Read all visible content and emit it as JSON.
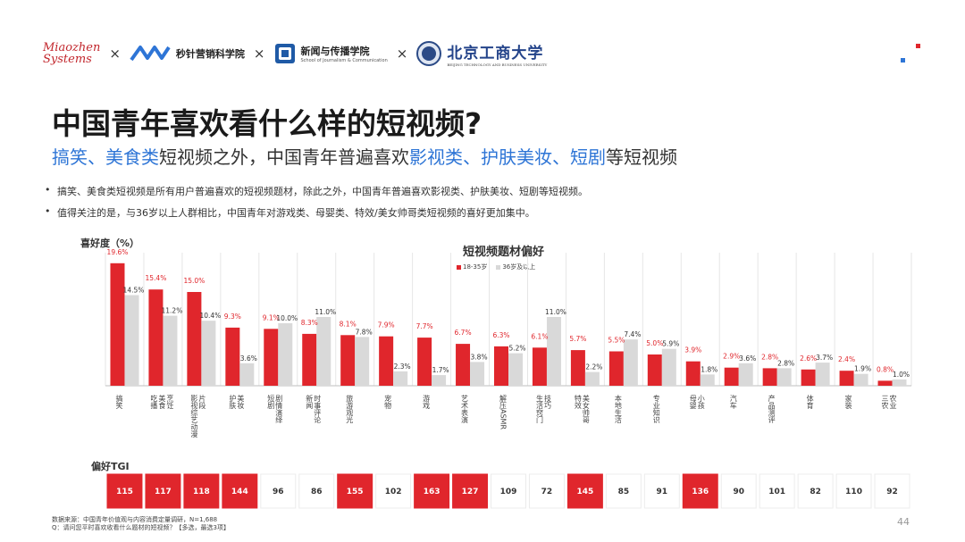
{
  "header": {
    "logo_miaozhen": [
      "Miaozhen",
      "Systems"
    ],
    "times_symbol": "×",
    "logo_miaozhen_academy": "秒针营销科学院",
    "logo_school": "新闻与传播学院",
    "logo_school_sub": "School of Journalism & Communication",
    "logo_btbu": "北京工商大学",
    "logo_btbu_sub": "BEIJING TECHNOLOGY AND BUSINESS UNIVERSITY"
  },
  "colors": {
    "accent_red": "#e0262c",
    "series_gray": "#d9d9d9",
    "highlight_blue": "#2e75d6",
    "corner_red": "#e0262c",
    "corner_blue": "#2e75d6"
  },
  "title": "中国青年喜欢看什么样的短视频?",
  "subtitle": {
    "part1": "搞笑、美食类",
    "part2": "短视频之外，中国青年普遍喜欢",
    "part3": "影视类、护肤美妆、短剧",
    "part4": "等短视频"
  },
  "bullets": [
    "搞笑、美食类短视频是所有用户普遍喜欢的短视频题材，除此之外，中国青年普遍喜欢影视类、护肤美妆、短剧等短视频。",
    "值得关注的是，与36岁以上人群相比，中国青年对游戏类、母婴类、特效/美女帅哥类短视频的喜好更加集中。"
  ],
  "chart_data": {
    "type": "bar",
    "title": "短视频题材偏好",
    "ylabel": "喜好度（%）",
    "tgi_label": "偏好TGI",
    "categories": [
      "搞笑",
      "吃播美食烹饪",
      "影视综艺动漫片段",
      "护肤美妆",
      "短剧剧情演绎",
      "新闻时事评论",
      "旅游观光",
      "宠物",
      "游戏",
      "艺术表演",
      "解压ASMR",
      "生活窍门技巧",
      "特效美女帅哥",
      "本地生活",
      "专业知识",
      "母婴小孩",
      "汽车",
      "产品测评",
      "体育",
      "家装",
      "三农农业"
    ],
    "category_lines": [
      [
        "搞笑"
      ],
      [
        "吃播",
        "美食",
        "烹饪"
      ],
      [
        "影视综艺动漫",
        "片段"
      ],
      [
        "护肤",
        "美妆"
      ],
      [
        "短剧",
        "剧情演绎"
      ],
      [
        "新闻",
        "时事评论"
      ],
      [
        "旅游观光"
      ],
      [
        "宠物"
      ],
      [
        "游戏"
      ],
      [
        "艺术表演"
      ],
      [
        "解压ASMR"
      ],
      [
        "生活窍门",
        "技巧"
      ],
      [
        "特效",
        "美女帅哥"
      ],
      [
        "本地生活"
      ],
      [
        "专业知识"
      ],
      [
        "母婴",
        "小孩"
      ],
      [
        "汽车"
      ],
      [
        "产品测评"
      ],
      [
        "体育"
      ],
      [
        "家装"
      ],
      [
        "三农",
        "农业"
      ]
    ],
    "series": [
      {
        "name": "18-35岁",
        "color": "#e0262c",
        "values": [
          19.6,
          15.4,
          15.0,
          9.3,
          9.1,
          8.3,
          8.1,
          7.9,
          7.7,
          6.7,
          6.3,
          6.1,
          5.7,
          5.5,
          5.0,
          3.9,
          2.9,
          2.8,
          2.6,
          2.4,
          0.8
        ]
      },
      {
        "name": "36岁及以上",
        "color": "#d9d9d9",
        "values": [
          14.5,
          11.2,
          10.4,
          3.6,
          10.0,
          11.0,
          7.8,
          2.3,
          1.7,
          3.8,
          5.2,
          11.0,
          2.2,
          7.4,
          5.9,
          1.8,
          3.6,
          2.8,
          3.7,
          1.9,
          1.0
        ]
      }
    ],
    "tgi": [
      115,
      117,
      118,
      144,
      96,
      86,
      155,
      102,
      163,
      127,
      109,
      72,
      145,
      85,
      91,
      136,
      90,
      101,
      82,
      110,
      92
    ],
    "tgi_highlighted": [
      true,
      true,
      true,
      true,
      false,
      false,
      true,
      false,
      true,
      true,
      false,
      false,
      true,
      false,
      false,
      true,
      false,
      false,
      false,
      false,
      false
    ],
    "ylim": [
      0,
      25
    ],
    "legend_position": "top-center"
  },
  "footer": {
    "source": "数据来源：中国青年价值观与内容消费定量调研，N=1,688",
    "question": "Q：请问您平时喜欢收看什么题材的短视频？【多选，最选3项】",
    "page": "44"
  }
}
